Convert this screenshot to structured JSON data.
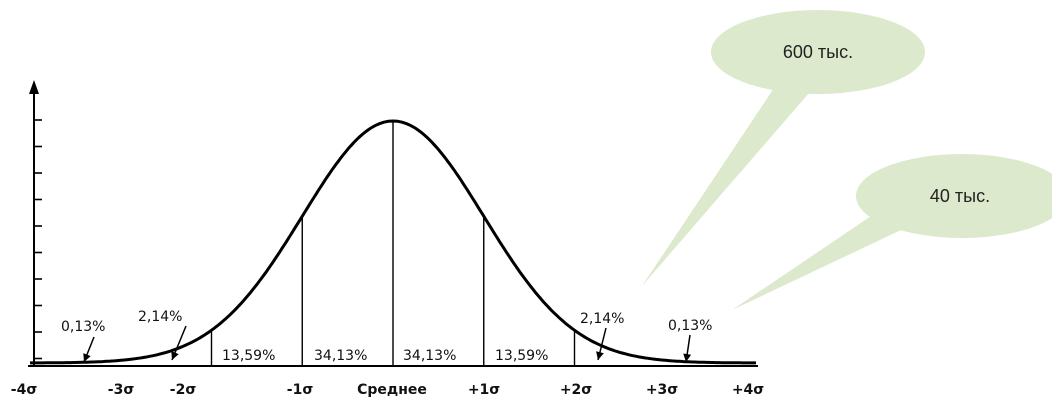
{
  "chart_data": {
    "type": "area",
    "title": "",
    "xlabel": "",
    "ylabel": "",
    "x_ticks": [
      "-4σ",
      "-3σ",
      "-2σ",
      "-1σ",
      "Среднее",
      "+1σ",
      "+2σ",
      "+3σ",
      "+4σ"
    ],
    "xlim": [
      -4,
      4
    ],
    "segments": [
      {
        "from": -4,
        "to": -3,
        "percent": "0,13%"
      },
      {
        "from": -3,
        "to": -2,
        "percent": "2,14%"
      },
      {
        "from": -2,
        "to": -1,
        "percent": "13,59%"
      },
      {
        "from": -1,
        "to": 0,
        "percent": "34,13%"
      },
      {
        "from": 0,
        "to": 1,
        "percent": "34,13%"
      },
      {
        "from": 1,
        "to": 2,
        "percent": "13,59%"
      },
      {
        "from": 2,
        "to": 3,
        "percent": "2,14%"
      },
      {
        "from": 3,
        "to": 4,
        "percent": "0,13%"
      }
    ],
    "annotations": [
      {
        "text": "600 тыс.",
        "points_to": 2
      },
      {
        "text": "40 тыс.",
        "points_to": 3
      }
    ],
    "colors": {
      "bubble": "#dde9cc",
      "curve": "#000000"
    }
  }
}
